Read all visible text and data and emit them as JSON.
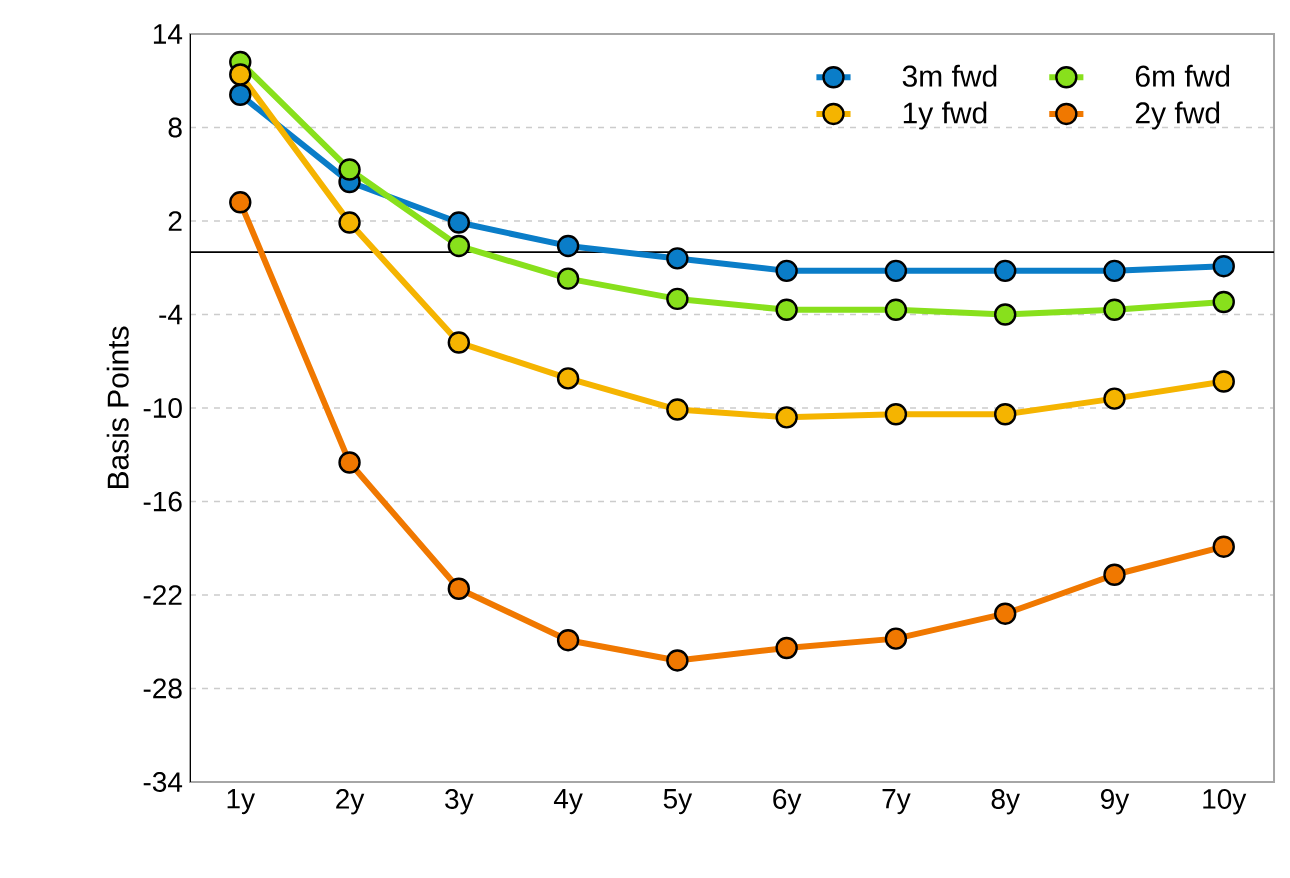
{
  "chart_data": {
    "type": "line",
    "ylabel": "Basis Points",
    "categories": [
      "1y",
      "2y",
      "3y",
      "4y",
      "5y",
      "6y",
      "7y",
      "8y",
      "9y",
      "10y"
    ],
    "series": [
      {
        "name": "3m fwd",
        "color": "#0a7dc8",
        "values": [
          10.1,
          4.5,
          1.9,
          0.4,
          -0.4,
          -1.2,
          -1.2,
          -1.2,
          -1.2,
          -0.9
        ]
      },
      {
        "name": "6m fwd",
        "color": "#88e01c",
        "values": [
          12.2,
          5.3,
          0.4,
          -1.7,
          -3.0,
          -3.7,
          -3.7,
          -4.0,
          -3.7,
          -3.2
        ]
      },
      {
        "name": "1y fwd",
        "color": "#f5b400",
        "values": [
          11.4,
          1.9,
          -5.8,
          -8.1,
          -10.1,
          -10.6,
          -10.4,
          -10.4,
          -9.4,
          -8.3
        ]
      },
      {
        "name": "2y fwd",
        "color": "#f07800",
        "values": [
          3.2,
          -13.5,
          -21.6,
          -24.9,
          -26.2,
          -25.4,
          -24.8,
          -23.2,
          -20.7,
          -18.9
        ]
      }
    ],
    "ylim": [
      -34,
      14
    ],
    "yticks": [
      -34,
      -28,
      -22,
      -16,
      -10,
      -4,
      2,
      8,
      14
    ],
    "ref_lines": [
      {
        "axis": "y",
        "value": 0,
        "color": "#000000"
      }
    ],
    "grid": "y",
    "legend": "top right",
    "marker": "circle",
    "line_style": "solid"
  }
}
